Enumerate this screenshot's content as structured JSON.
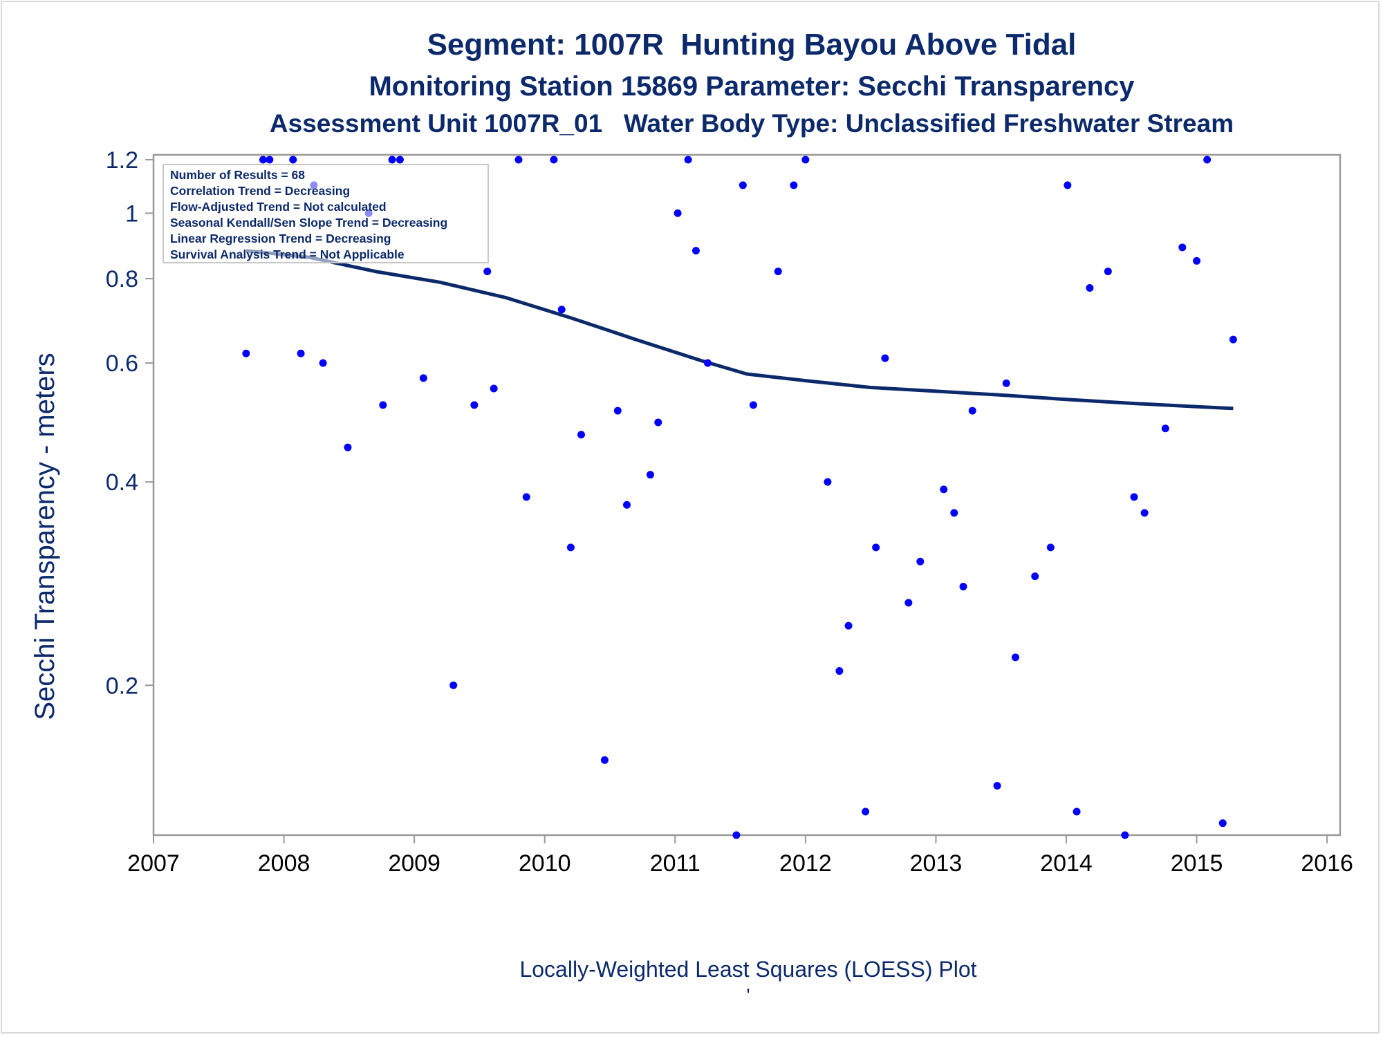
{
  "titles": {
    "line1": "Segment: 1007R  Hunting Bayou Above Tidal",
    "line2": "Monitoring Station 15869 Parameter: Secchi Transparency",
    "line3": "Assessment Unit 1007R_01   Water Body Type: Unclassified Freshwater Stream"
  },
  "footer": {
    "caption": "Locally-Weighted Least Squares (LOESS) Plot",
    "mark": "'"
  },
  "colors": {
    "title": "#0c2a6b",
    "points": "#0000ff",
    "loess_line": "#0c2a6b",
    "axis": "#999999"
  },
  "chart_data": {
    "type": "scatter",
    "ylabel": "Secchi Transparency - meters",
    "xlabel": "",
    "y_scale": "log",
    "xlim": [
      2007.0,
      2016.1
    ],
    "ylim": [
      0.12,
      1.22
    ],
    "x_ticks": [
      2007,
      2008,
      2009,
      2010,
      2011,
      2012,
      2013,
      2014,
      2015,
      2016
    ],
    "y_ticks": [
      0.2,
      0.4,
      0.6,
      0.8,
      1,
      1.2
    ],
    "x_tick_labels": [
      "2007",
      "2008",
      "2009",
      "2010",
      "2011",
      "2012",
      "2013",
      "2014",
      "2015",
      "2016"
    ],
    "y_tick_labels": [
      "0.2",
      "0.4",
      "0.6",
      "0.8",
      "1",
      "1.2"
    ],
    "legend_placement": "top-left",
    "stats": [
      "Number of Results = 68",
      "Correlation Trend = Decreasing",
      "Flow-Adjusted Trend = Not calculated",
      "Seasonal Kendall/Sen Slope Trend = Decreasing",
      "Linear Regression Trend = Decreasing",
      "Survival Analysis Trend = Not Applicable"
    ],
    "points": [
      {
        "x": 2007.71,
        "y": 0.62
      },
      {
        "x": 2007.84,
        "y": 1.2
      },
      {
        "x": 2007.89,
        "y": 1.2
      },
      {
        "x": 2008.07,
        "y": 1.2
      },
      {
        "x": 2008.13,
        "y": 0.62
      },
      {
        "x": 2008.23,
        "y": 1.1
      },
      {
        "x": 2008.3,
        "y": 0.6
      },
      {
        "x": 2008.49,
        "y": 0.45
      },
      {
        "x": 2008.65,
        "y": 1.0
      },
      {
        "x": 2008.76,
        "y": 0.52
      },
      {
        "x": 2008.83,
        "y": 1.2
      },
      {
        "x": 2008.89,
        "y": 1.2
      },
      {
        "x": 2009.07,
        "y": 0.57
      },
      {
        "x": 2009.3,
        "y": 0.2
      },
      {
        "x": 2009.46,
        "y": 0.52
      },
      {
        "x": 2009.56,
        "y": 0.82
      },
      {
        "x": 2009.61,
        "y": 0.55
      },
      {
        "x": 2009.8,
        "y": 1.2
      },
      {
        "x": 2009.86,
        "y": 0.38
      },
      {
        "x": 2010.07,
        "y": 1.2
      },
      {
        "x": 2010.13,
        "y": 0.72
      },
      {
        "x": 2010.2,
        "y": 0.32
      },
      {
        "x": 2010.28,
        "y": 0.47
      },
      {
        "x": 2010.46,
        "y": 0.155
      },
      {
        "x": 2010.56,
        "y": 0.51
      },
      {
        "x": 2010.63,
        "y": 0.37
      },
      {
        "x": 2010.81,
        "y": 0.41
      },
      {
        "x": 2010.87,
        "y": 0.49
      },
      {
        "x": 2011.02,
        "y": 1.0
      },
      {
        "x": 2011.1,
        "y": 1.2
      },
      {
        "x": 2011.16,
        "y": 0.88
      },
      {
        "x": 2011.25,
        "y": 0.6
      },
      {
        "x": 2011.47,
        "y": 0.12
      },
      {
        "x": 2011.52,
        "y": 1.1
      },
      {
        "x": 2011.6,
        "y": 0.52
      },
      {
        "x": 2011.79,
        "y": 0.82
      },
      {
        "x": 2011.91,
        "y": 1.1
      },
      {
        "x": 2012.0,
        "y": 1.2
      },
      {
        "x": 2012.17,
        "y": 0.4
      },
      {
        "x": 2012.26,
        "y": 0.21
      },
      {
        "x": 2012.33,
        "y": 0.245
      },
      {
        "x": 2012.46,
        "y": 0.13
      },
      {
        "x": 2012.54,
        "y": 0.32
      },
      {
        "x": 2012.61,
        "y": 0.61
      },
      {
        "x": 2012.79,
        "y": 0.265
      },
      {
        "x": 2012.88,
        "y": 0.305
      },
      {
        "x": 2013.06,
        "y": 0.39
      },
      {
        "x": 2013.14,
        "y": 0.36
      },
      {
        "x": 2013.21,
        "y": 0.28
      },
      {
        "x": 2013.28,
        "y": 0.51
      },
      {
        "x": 2013.47,
        "y": 0.142
      },
      {
        "x": 2013.54,
        "y": 0.56
      },
      {
        "x": 2013.61,
        "y": 0.22
      },
      {
        "x": 2013.76,
        "y": 0.29
      },
      {
        "x": 2013.88,
        "y": 0.32
      },
      {
        "x": 2014.01,
        "y": 1.1
      },
      {
        "x": 2014.08,
        "y": 0.13
      },
      {
        "x": 2014.18,
        "y": 0.775
      },
      {
        "x": 2014.32,
        "y": 0.82
      },
      {
        "x": 2014.45,
        "y": 0.12
      },
      {
        "x": 2014.52,
        "y": 0.38
      },
      {
        "x": 2014.6,
        "y": 0.36
      },
      {
        "x": 2014.76,
        "y": 0.48
      },
      {
        "x": 2014.89,
        "y": 0.89
      },
      {
        "x": 2015.0,
        "y": 0.85
      },
      {
        "x": 2015.08,
        "y": 1.2
      },
      {
        "x": 2015.2,
        "y": 0.125
      },
      {
        "x": 2015.28,
        "y": 0.65
      }
    ],
    "loess": [
      {
        "x": 2007.71,
        "y": 0.88
      },
      {
        "x": 2008.2,
        "y": 0.86
      },
      {
        "x": 2008.7,
        "y": 0.82
      },
      {
        "x": 2009.2,
        "y": 0.79
      },
      {
        "x": 2009.7,
        "y": 0.75
      },
      {
        "x": 2010.2,
        "y": 0.7
      },
      {
        "x": 2010.7,
        "y": 0.65
      },
      {
        "x": 2011.2,
        "y": 0.605
      },
      {
        "x": 2011.55,
        "y": 0.578
      },
      {
        "x": 2012.0,
        "y": 0.565
      },
      {
        "x": 2012.5,
        "y": 0.552
      },
      {
        "x": 2013.0,
        "y": 0.545
      },
      {
        "x": 2013.5,
        "y": 0.538
      },
      {
        "x": 2014.0,
        "y": 0.53
      },
      {
        "x": 2014.5,
        "y": 0.523
      },
      {
        "x": 2015.0,
        "y": 0.517
      },
      {
        "x": 2015.28,
        "y": 0.514
      }
    ]
  }
}
